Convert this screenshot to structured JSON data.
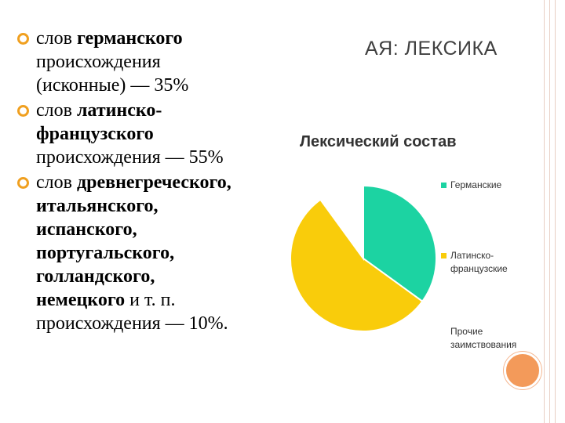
{
  "slide_title": "АЯ: ЛЕКСИКА",
  "bullets": [
    {
      "lines": [
        [
          {
            "t": "слов ",
            "b": false
          },
          {
            "t": "германского",
            "b": true
          }
        ],
        [
          {
            "t": "происхождения",
            "b": false
          }
        ],
        [
          {
            "t": "(исконные) — 35%",
            "b": false
          }
        ]
      ]
    },
    {
      "lines": [
        [
          {
            "t": "слов ",
            "b": false
          },
          {
            "t": "латинско-",
            "b": true
          }
        ],
        [
          {
            "t": "французского",
            "b": true
          }
        ],
        [
          {
            "t": "происхождения — 55%",
            "b": false
          }
        ]
      ]
    },
    {
      "lines": [
        [
          {
            "t": "слов ",
            "b": false
          },
          {
            "t": "древнегреческого,",
            "b": true
          }
        ],
        [
          {
            "t": "итальянского,",
            "b": true
          }
        ],
        [
          {
            "t": "испанского,",
            "b": true
          }
        ],
        [
          {
            "t": "португальского,",
            "b": true
          }
        ],
        [
          {
            "t": "голландского,",
            "b": true
          }
        ],
        [
          {
            "t": "немецкого",
            "b": true
          },
          {
            "t": " и т. п.",
            "b": false
          }
        ],
        [
          {
            "t": "происхождения — 10%.",
            "b": false
          }
        ]
      ]
    }
  ],
  "chart_data": {
    "type": "pie",
    "title": "Лексический состав",
    "series": [
      {
        "name": "Германские",
        "value": 35,
        "color": "#1cd3a2"
      },
      {
        "name": "Латинско-французские",
        "value": 55,
        "color": "#f9cc0b"
      },
      {
        "name": "Прочие заимствования",
        "value": 10,
        "color": "#ffffff"
      }
    ],
    "legend_labels": [
      [
        "Германские"
      ],
      [
        "Латинско-",
        "французские"
      ],
      [
        "Прочие",
        "заимствования"
      ]
    ],
    "legend_position": "right"
  },
  "colors": {
    "bullet_accent": "#f0a020",
    "decor_circle": "#f39a5a",
    "title_text": "#404040"
  }
}
